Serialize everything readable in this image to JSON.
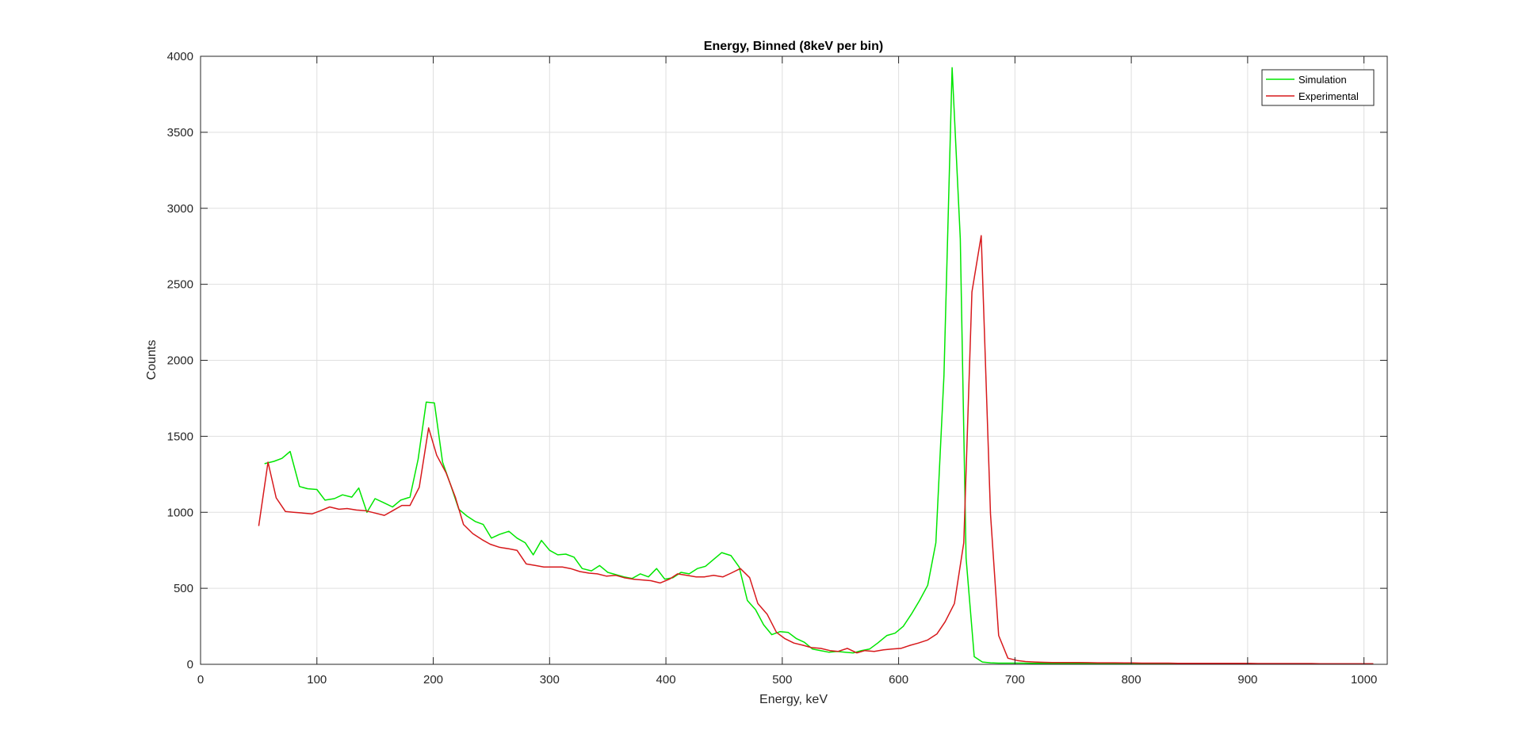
{
  "chart_data": {
    "type": "line",
    "title": "Energy, Binned (8keV per bin)",
    "xlabel": "Energy, keV",
    "ylabel": "Counts",
    "xlim": [
      0,
      1020
    ],
    "ylim": [
      0,
      4000
    ],
    "xticks": [
      0,
      100,
      200,
      300,
      400,
      500,
      600,
      700,
      800,
      900,
      1000
    ],
    "yticks": [
      0,
      500,
      1000,
      1500,
      2000,
      2500,
      3000,
      3500,
      4000
    ],
    "grid": true,
    "legend_position": "top-right",
    "series": [
      {
        "name": "Simulation",
        "color": "#00e600",
        "x": [
          55,
          63,
          70,
          77,
          85,
          92,
          100,
          107,
          115,
          122,
          130,
          136,
          143,
          150,
          157,
          165,
          172,
          180,
          187,
          194,
          201,
          208,
          215,
          222,
          229,
          236,
          243,
          250,
          257,
          265,
          272,
          279,
          286,
          293,
          300,
          307,
          314,
          321,
          328,
          336,
          343,
          350,
          357,
          364,
          371,
          378,
          385,
          392,
          399,
          406,
          413,
          420,
          427,
          434,
          441,
          448,
          456,
          463,
          470,
          477,
          484,
          491,
          498,
          505,
          512,
          519,
          526,
          533,
          540,
          547,
          554,
          561,
          568,
          575,
          582,
          590,
          597,
          604,
          611,
          618,
          625,
          632,
          639,
          646,
          653,
          658,
          665,
          672,
          679,
          686,
          693,
          700,
          707,
          715,
          722,
          729,
          736,
          743,
          750,
          757,
          765,
          772,
          779,
          786,
          793,
          800,
          808,
          815,
          822,
          829,
          836,
          843,
          850,
          857,
          865,
          872,
          879,
          886,
          893,
          900,
          907,
          915,
          922,
          929,
          936,
          943,
          950,
          957,
          965,
          972,
          979,
          986,
          993,
          1000,
          1008
        ],
        "values": [
          1320,
          1335,
          1355,
          1400,
          1170,
          1155,
          1150,
          1080,
          1090,
          1115,
          1100,
          1160,
          1000,
          1090,
          1065,
          1035,
          1080,
          1100,
          1350,
          1725,
          1720,
          1330,
          1180,
          1020,
          975,
          940,
          920,
          830,
          855,
          875,
          830,
          800,
          720,
          815,
          750,
          720,
          725,
          705,
          630,
          615,
          650,
          605,
          590,
          575,
          565,
          595,
          575,
          630,
          560,
          570,
          605,
          595,
          630,
          645,
          690,
          735,
          715,
          640,
          420,
          360,
          260,
          195,
          215,
          210,
          170,
          145,
          100,
          90,
          80,
          85,
          80,
          75,
          90,
          100,
          140,
          190,
          205,
          250,
          330,
          420,
          520,
          800,
          1900,
          3925,
          2800,
          700,
          50,
          15,
          10,
          8,
          8,
          8,
          8,
          7,
          7,
          7,
          6,
          6,
          6,
          6,
          5,
          5,
          5,
          5,
          5,
          5,
          5,
          5,
          5,
          4,
          4,
          4,
          4,
          4,
          4,
          4,
          4,
          4,
          4,
          4,
          4,
          4,
          4,
          3,
          3,
          3,
          3,
          3,
          3,
          3,
          3,
          3,
          3,
          3,
          3
        ]
      },
      {
        "name": "Experimental",
        "color": "#d7191c",
        "x": [
          50,
          58,
          65,
          73,
          80,
          88,
          96,
          103,
          111,
          119,
          126,
          134,
          142,
          150,
          158,
          165,
          173,
          180,
          188,
          196,
          203,
          211,
          219,
          226,
          234,
          242,
          249,
          257,
          265,
          272,
          280,
          288,
          295,
          303,
          311,
          318,
          326,
          334,
          341,
          349,
          357,
          364,
          372,
          380,
          387,
          395,
          403,
          410,
          418,
          426,
          433,
          441,
          449,
          456,
          464,
          472,
          479,
          487,
          495,
          502,
          510,
          518,
          525,
          533,
          541,
          548,
          556,
          564,
          571,
          579,
          587,
          594,
          602,
          610,
          617,
          625,
          633,
          640,
          648,
          656,
          663,
          671,
          679,
          686,
          694,
          702,
          709,
          717,
          725,
          732,
          740,
          748,
          755,
          763,
          771,
          778,
          786,
          794,
          801,
          809,
          817,
          824,
          832,
          840,
          847,
          855,
          863,
          870,
          878,
          886,
          893,
          901,
          909,
          916,
          924,
          932,
          939,
          947,
          955,
          962,
          970,
          978,
          985,
          993,
          1001,
          1008
        ],
        "values": [
          910,
          1330,
          1095,
          1005,
          1000,
          995,
          990,
          1010,
          1035,
          1020,
          1025,
          1015,
          1010,
          995,
          980,
          1010,
          1045,
          1045,
          1165,
          1555,
          1375,
          1260,
          1100,
          920,
          860,
          820,
          790,
          770,
          760,
          750,
          660,
          650,
          640,
          640,
          640,
          630,
          610,
          600,
          595,
          580,
          585,
          570,
          560,
          555,
          550,
          535,
          560,
          595,
          585,
          575,
          575,
          585,
          575,
          600,
          630,
          570,
          400,
          330,
          210,
          170,
          140,
          125,
          110,
          105,
          90,
          85,
          105,
          75,
          90,
          85,
          95,
          100,
          105,
          125,
          140,
          160,
          200,
          280,
          400,
          800,
          2450,
          2820,
          990,
          190,
          40,
          25,
          18,
          15,
          13,
          12,
          12,
          12,
          12,
          11,
          10,
          10,
          10,
          9,
          9,
          8,
          8,
          8,
          8,
          7,
          7,
          7,
          7,
          6,
          6,
          6,
          6,
          6,
          5,
          5,
          5,
          5,
          5,
          5,
          5,
          4,
          4,
          4,
          4,
          4,
          4,
          4
        ]
      }
    ]
  }
}
